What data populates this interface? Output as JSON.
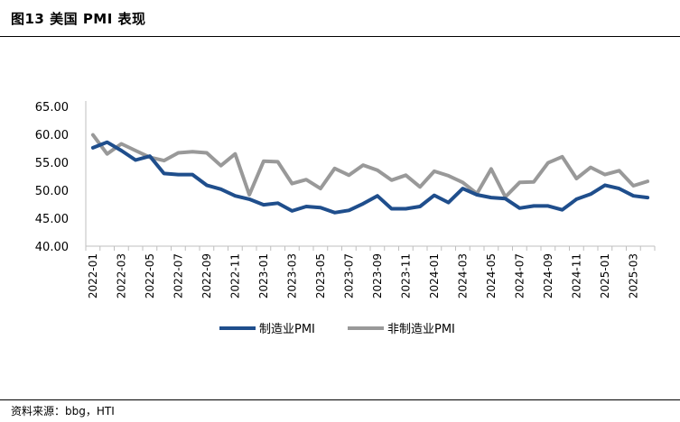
{
  "title": "图13 美国 PMI 表现",
  "source": "资料来源：bbg，HTI",
  "chart_data": {
    "type": "line",
    "title": "图13 美国 PMI 表现",
    "xlabel": "",
    "ylabel": "",
    "ylim": [
      40,
      65
    ],
    "yticks": [
      "40.00",
      "45.00",
      "50.00",
      "55.00",
      "60.00",
      "65.00"
    ],
    "grid": false,
    "legend_position": "bottom",
    "x": [
      "2022-01",
      "2022-02",
      "2022-03",
      "2022-04",
      "2022-05",
      "2022-06",
      "2022-07",
      "2022-08",
      "2022-09",
      "2022-10",
      "2022-11",
      "2022-12",
      "2023-01",
      "2023-02",
      "2023-03",
      "2023-04",
      "2023-05",
      "2023-06",
      "2023-07",
      "2023-08",
      "2023-09",
      "2023-10",
      "2023-11",
      "2023-12",
      "2024-01",
      "2024-02",
      "2024-03",
      "2024-04",
      "2024-05",
      "2024-06",
      "2024-07",
      "2024-08",
      "2024-09",
      "2024-10",
      "2024-11",
      "2024-12",
      "2025-01",
      "2025-02",
      "2025-03",
      "2025-04"
    ],
    "xtick_labels": [
      "2022-01",
      "2022-03",
      "2022-05",
      "2022-07",
      "2022-09",
      "2022-11",
      "2023-01",
      "2023-03",
      "2023-05",
      "2023-07",
      "2023-09",
      "2023-11",
      "2024-01",
      "2024-03",
      "2024-05",
      "2024-07",
      "2024-09",
      "2024-11",
      "2025-01",
      "2025-03"
    ],
    "series": [
      {
        "name": "制造业PMI",
        "color": "#1f4e8c",
        "values": [
          57.6,
          58.6,
          57.1,
          55.4,
          56.1,
          53.0,
          52.8,
          52.8,
          50.9,
          50.2,
          49.0,
          48.4,
          47.4,
          47.7,
          46.3,
          47.1,
          46.9,
          46.0,
          46.4,
          47.6,
          49.0,
          46.7,
          46.7,
          47.1,
          49.1,
          47.8,
          50.3,
          49.2,
          48.7,
          48.5,
          46.8,
          47.2,
          47.2,
          46.5,
          48.4,
          49.3,
          50.9,
          50.3,
          49.0,
          48.7
        ]
      },
      {
        "name": "非制造业PMI",
        "color": "#999999",
        "values": [
          59.9,
          56.5,
          58.3,
          57.1,
          55.9,
          55.3,
          56.7,
          56.9,
          56.7,
          54.4,
          56.5,
          49.2,
          55.2,
          55.1,
          51.2,
          51.9,
          50.3,
          53.9,
          52.7,
          54.5,
          53.6,
          51.8,
          52.7,
          50.6,
          53.4,
          52.6,
          51.4,
          49.4,
          53.8,
          48.8,
          51.4,
          51.5,
          54.9,
          56.0,
          52.1,
          54.1,
          52.8,
          53.5,
          50.8,
          51.6
        ]
      }
    ]
  }
}
